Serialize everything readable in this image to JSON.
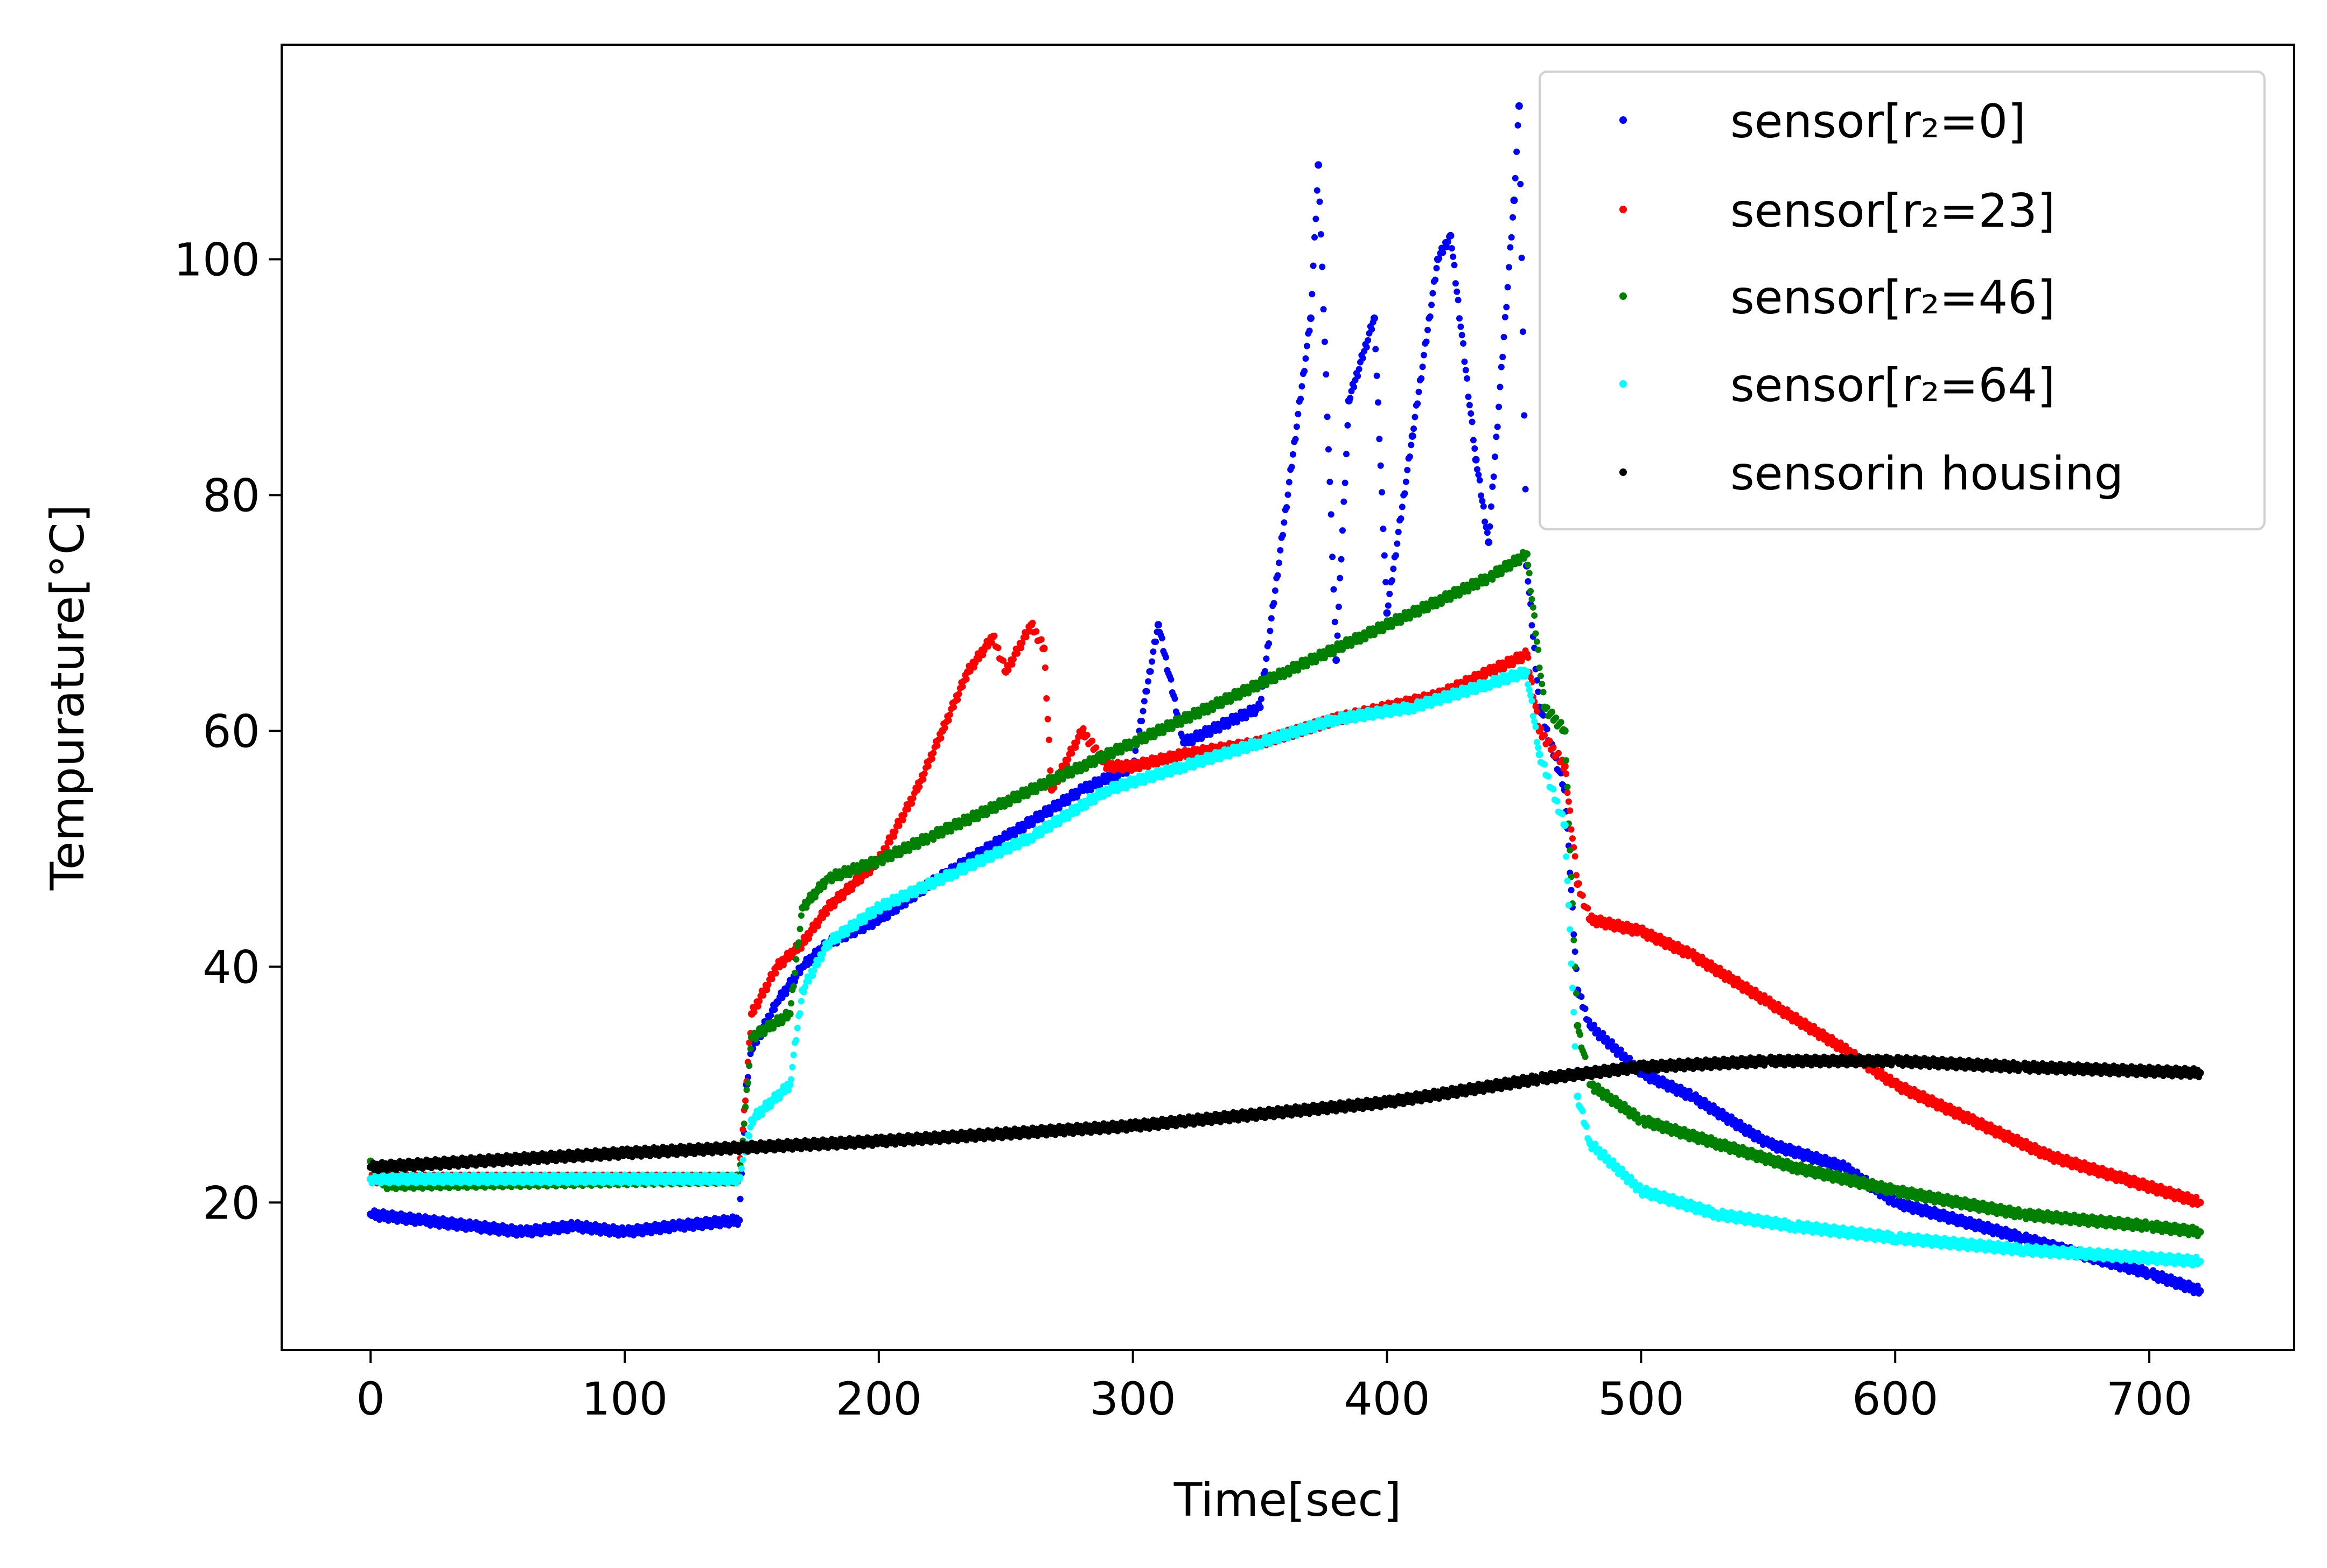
{
  "chart_data": {
    "type": "scatter",
    "title": "",
    "xlabel": "Time[sec]",
    "ylabel": "Tempurature[°C]",
    "xlim": [
      -35,
      757
    ],
    "ylim": [
      7.5,
      118.2
    ],
    "xticks": [
      0,
      100,
      200,
      300,
      400,
      500,
      600,
      700
    ],
    "yticks": [
      20,
      40,
      60,
      80,
      100
    ],
    "grid": false,
    "legend_position": "top-right",
    "series": [
      {
        "name": "sensor[r₂=0]",
        "color": "#0000ff",
        "points": [
          [
            0,
            19
          ],
          [
            20,
            18.5
          ],
          [
            40,
            18
          ],
          [
            60,
            17.5
          ],
          [
            80,
            18
          ],
          [
            100,
            17.5
          ],
          [
            120,
            18
          ],
          [
            145,
            18.5
          ],
          [
            148,
            30
          ],
          [
            150,
            33
          ],
          [
            160,
            37
          ],
          [
            170,
            40
          ],
          [
            180,
            42
          ],
          [
            200,
            44
          ],
          [
            220,
            47
          ],
          [
            250,
            51
          ],
          [
            280,
            55
          ],
          [
            300,
            57
          ],
          [
            310,
            69
          ],
          [
            320,
            59
          ],
          [
            350,
            62
          ],
          [
            370,
            95
          ],
          [
            373,
            108
          ],
          [
            380,
            66
          ],
          [
            385,
            88
          ],
          [
            395,
            95
          ],
          [
            400,
            70
          ],
          [
            410,
            85
          ],
          [
            420,
            100
          ],
          [
            425,
            102
          ],
          [
            435,
            83
          ],
          [
            440,
            76
          ],
          [
            450,
            105
          ],
          [
            452,
            113
          ],
          [
            455,
            74
          ],
          [
            460,
            62
          ],
          [
            470,
            55
          ],
          [
            475,
            38
          ],
          [
            480,
            35
          ],
          [
            500,
            31
          ],
          [
            520,
            29
          ],
          [
            550,
            25
          ],
          [
            580,
            23
          ],
          [
            600,
            20
          ],
          [
            650,
            17
          ],
          [
            700,
            14
          ],
          [
            720,
            12.5
          ]
        ]
      },
      {
        "name": "sensor[r₂=23]",
        "color": "#ff0000",
        "points": [
          [
            0,
            22
          ],
          [
            145,
            22
          ],
          [
            150,
            36
          ],
          [
            160,
            40
          ],
          [
            170,
            42
          ],
          [
            180,
            45
          ],
          [
            200,
            49
          ],
          [
            215,
            55
          ],
          [
            225,
            60
          ],
          [
            235,
            65
          ],
          [
            245,
            68
          ],
          [
            250,
            65
          ],
          [
            260,
            69
          ],
          [
            265,
            67
          ],
          [
            268,
            55
          ],
          [
            280,
            60
          ],
          [
            290,
            57
          ],
          [
            300,
            57
          ],
          [
            320,
            58
          ],
          [
            350,
            59
          ],
          [
            380,
            61
          ],
          [
            400,
            62
          ],
          [
            420,
            63
          ],
          [
            440,
            65
          ],
          [
            455,
            66.5
          ],
          [
            460,
            60
          ],
          [
            470,
            57
          ],
          [
            475,
            47
          ],
          [
            480,
            44
          ],
          [
            500,
            43
          ],
          [
            520,
            41
          ],
          [
            550,
            37
          ],
          [
            580,
            33
          ],
          [
            600,
            30
          ],
          [
            630,
            27
          ],
          [
            660,
            24
          ],
          [
            690,
            22
          ],
          [
            720,
            20
          ]
        ]
      },
      {
        "name": "sensor[r₂=46]",
        "color": "#008000",
        "points": [
          [
            0,
            23.5
          ],
          [
            5,
            21.5
          ],
          [
            145,
            22
          ],
          [
            150,
            34
          ],
          [
            165,
            36
          ],
          [
            170,
            45
          ],
          [
            180,
            47.5
          ],
          [
            200,
            49
          ],
          [
            220,
            51
          ],
          [
            250,
            54
          ],
          [
            280,
            57
          ],
          [
            300,
            59
          ],
          [
            330,
            62
          ],
          [
            360,
            65
          ],
          [
            390,
            68
          ],
          [
            420,
            71
          ],
          [
            440,
            73
          ],
          [
            455,
            75
          ],
          [
            462,
            62
          ],
          [
            470,
            60
          ],
          [
            475,
            35
          ],
          [
            480,
            30
          ],
          [
            500,
            27
          ],
          [
            530,
            25
          ],
          [
            560,
            23
          ],
          [
            600,
            21
          ],
          [
            650,
            19
          ],
          [
            700,
            18
          ],
          [
            720,
            17.5
          ]
        ]
      },
      {
        "name": "sensor[r₂=64]",
        "color": "#00ffff",
        "points": [
          [
            0,
            22
          ],
          [
            145,
            22
          ],
          [
            150,
            27
          ],
          [
            165,
            30
          ],
          [
            170,
            38
          ],
          [
            180,
            42
          ],
          [
            200,
            45
          ],
          [
            230,
            48
          ],
          [
            260,
            51
          ],
          [
            290,
            55
          ],
          [
            320,
            57
          ],
          [
            350,
            59
          ],
          [
            380,
            61
          ],
          [
            410,
            62
          ],
          [
            440,
            64
          ],
          [
            455,
            65
          ],
          [
            460,
            58
          ],
          [
            470,
            52
          ],
          [
            475,
            29
          ],
          [
            480,
            25
          ],
          [
            500,
            21
          ],
          [
            530,
            19
          ],
          [
            560,
            18
          ],
          [
            600,
            17
          ],
          [
            650,
            16
          ],
          [
            720,
            15
          ]
        ]
      },
      {
        "name": "sensorin housing",
        "color": "#000000",
        "points": [
          [
            0,
            23
          ],
          [
            100,
            24.2
          ],
          [
            200,
            25.2
          ],
          [
            300,
            26.5
          ],
          [
            400,
            28.5
          ],
          [
            460,
            30.5
          ],
          [
            500,
            31.5
          ],
          [
            550,
            32
          ],
          [
            600,
            32
          ],
          [
            650,
            31.5
          ],
          [
            720,
            31
          ]
        ]
      }
    ]
  }
}
